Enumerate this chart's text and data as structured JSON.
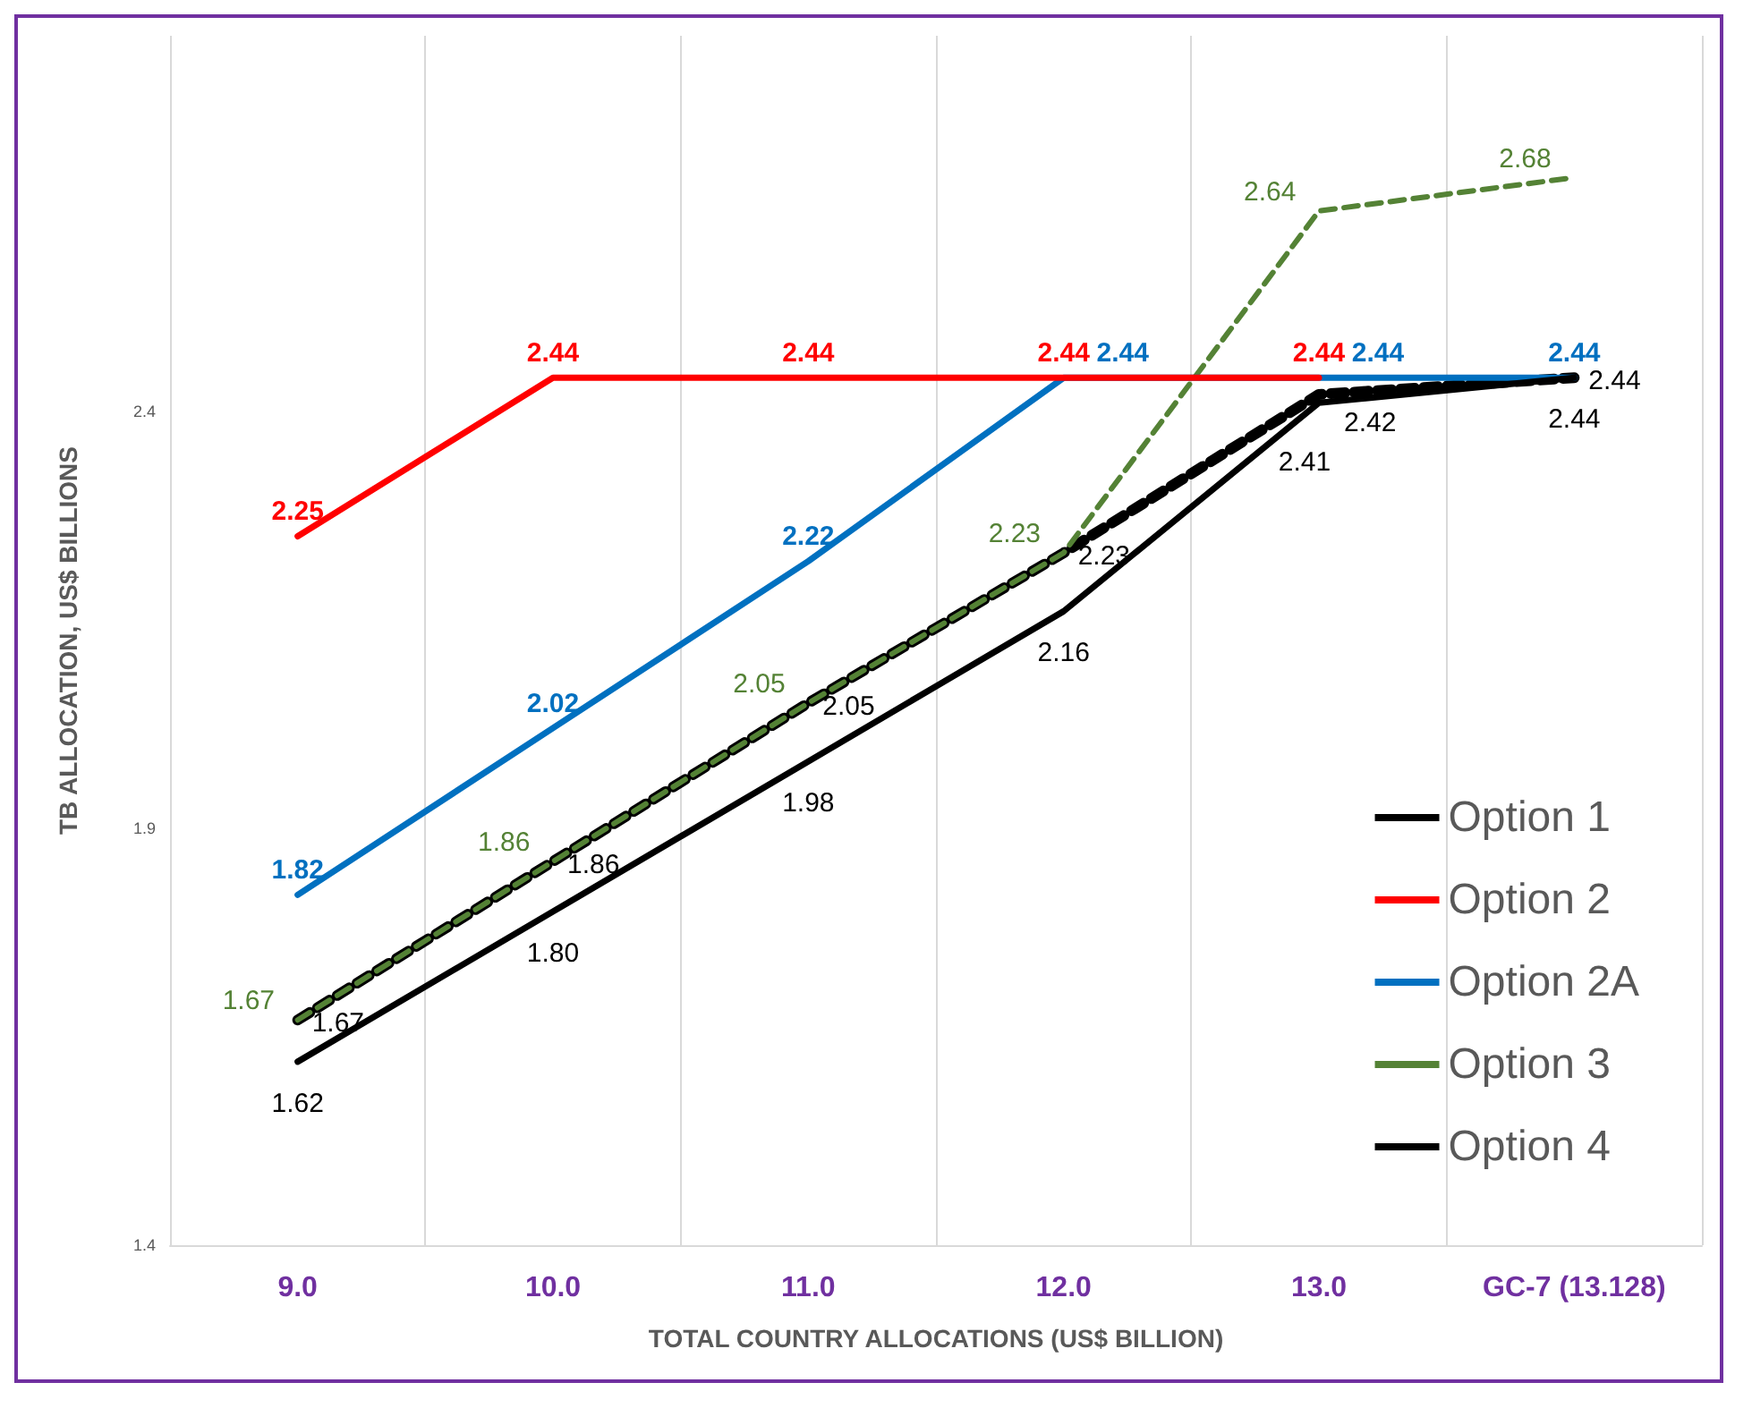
{
  "chart_data": {
    "type": "line",
    "xlabel": "TOTAL COUNTRY ALLOCATIONS (US$ BILLION)",
    "ylabel": "TB ALLOCATION, US$ BILLIONS",
    "categories": [
      "9.0",
      "10.0",
      "11.0",
      "12.0",
      "13.0",
      "GC-7 (13.128)"
    ],
    "ylim": [
      1.4,
      2.85
    ],
    "yticks": [
      1.4,
      1.9,
      2.4
    ],
    "grid": "x",
    "legend": "right",
    "marker": "none",
    "series": [
      {
        "name": "Option 1",
        "color": "#000000",
        "line_style": "solid",
        "values": [
          1.62,
          1.8,
          1.98,
          2.16,
          2.41,
          2.44
        ],
        "value_labels": [
          "1.62",
          "1.80",
          "1.98",
          "2.16",
          "2.41",
          "2.44"
        ]
      },
      {
        "name": "Option 2",
        "color": "#ff0000",
        "line_style": "solid",
        "values": [
          2.25,
          2.44,
          2.44,
          2.44,
          2.44,
          null
        ],
        "value_labels": [
          "2.25",
          "2.44",
          "2.44",
          "2.44",
          "2.44",
          null
        ]
      },
      {
        "name": "Option 2A",
        "color": "#0070c0",
        "line_style": "solid",
        "values": [
          1.82,
          2.02,
          2.22,
          2.44,
          2.44,
          2.44
        ],
        "value_labels": [
          "1.82",
          "2.02",
          "2.22",
          "2.44",
          "2.44",
          "2.44"
        ]
      },
      {
        "name": "Option 3",
        "color": "#548235",
        "line_style": "dashed",
        "values": [
          1.67,
          1.86,
          2.05,
          2.23,
          2.64,
          2.68
        ],
        "value_labels": [
          "1.67",
          "1.86",
          "2.05",
          "2.23",
          "2.64",
          "2.68"
        ]
      },
      {
        "name": "Option 4",
        "color": "#000000",
        "line_style": "dashed",
        "values": [
          1.67,
          1.86,
          2.05,
          2.23,
          2.42,
          2.44
        ],
        "value_labels": [
          "1.67",
          "1.86",
          "2.05",
          "2.23",
          "2.42",
          "2.44"
        ]
      }
    ]
  }
}
